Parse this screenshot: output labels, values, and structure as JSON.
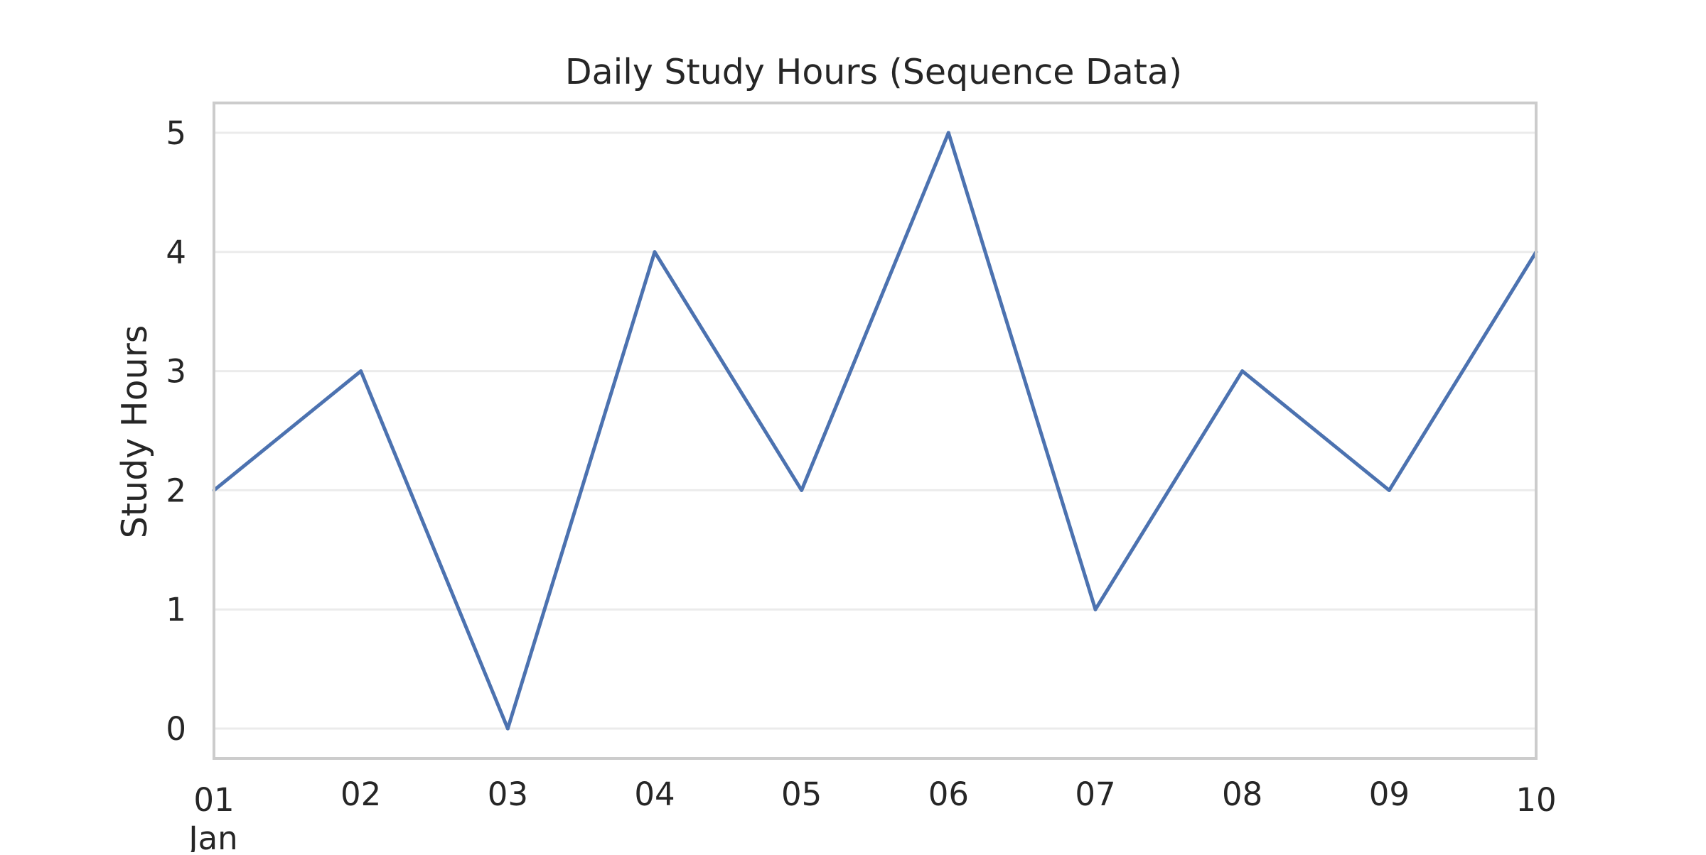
{
  "chart_data": {
    "type": "line",
    "title": "Daily Study Hours (Sequence Data)",
    "xlabel": "",
    "ylabel": "Study Hours",
    "x": [
      "01",
      "02",
      "03",
      "04",
      "05",
      "06",
      "07",
      "08",
      "09",
      "10"
    ],
    "x_month_label": "Jan",
    "series": [
      {
        "values": [
          2,
          3,
          0,
          4,
          2,
          5,
          1,
          3,
          2,
          4
        ]
      }
    ],
    "ylim": [
      -0.25,
      5.25
    ],
    "yticks": [
      "0",
      "1",
      "2",
      "3",
      "4",
      "5"
    ],
    "grid": "horizontal",
    "colors": {
      "line": "#4c72b0",
      "grid": "#ebebeb",
      "frame": "#cccccc",
      "text": "#262626"
    }
  }
}
